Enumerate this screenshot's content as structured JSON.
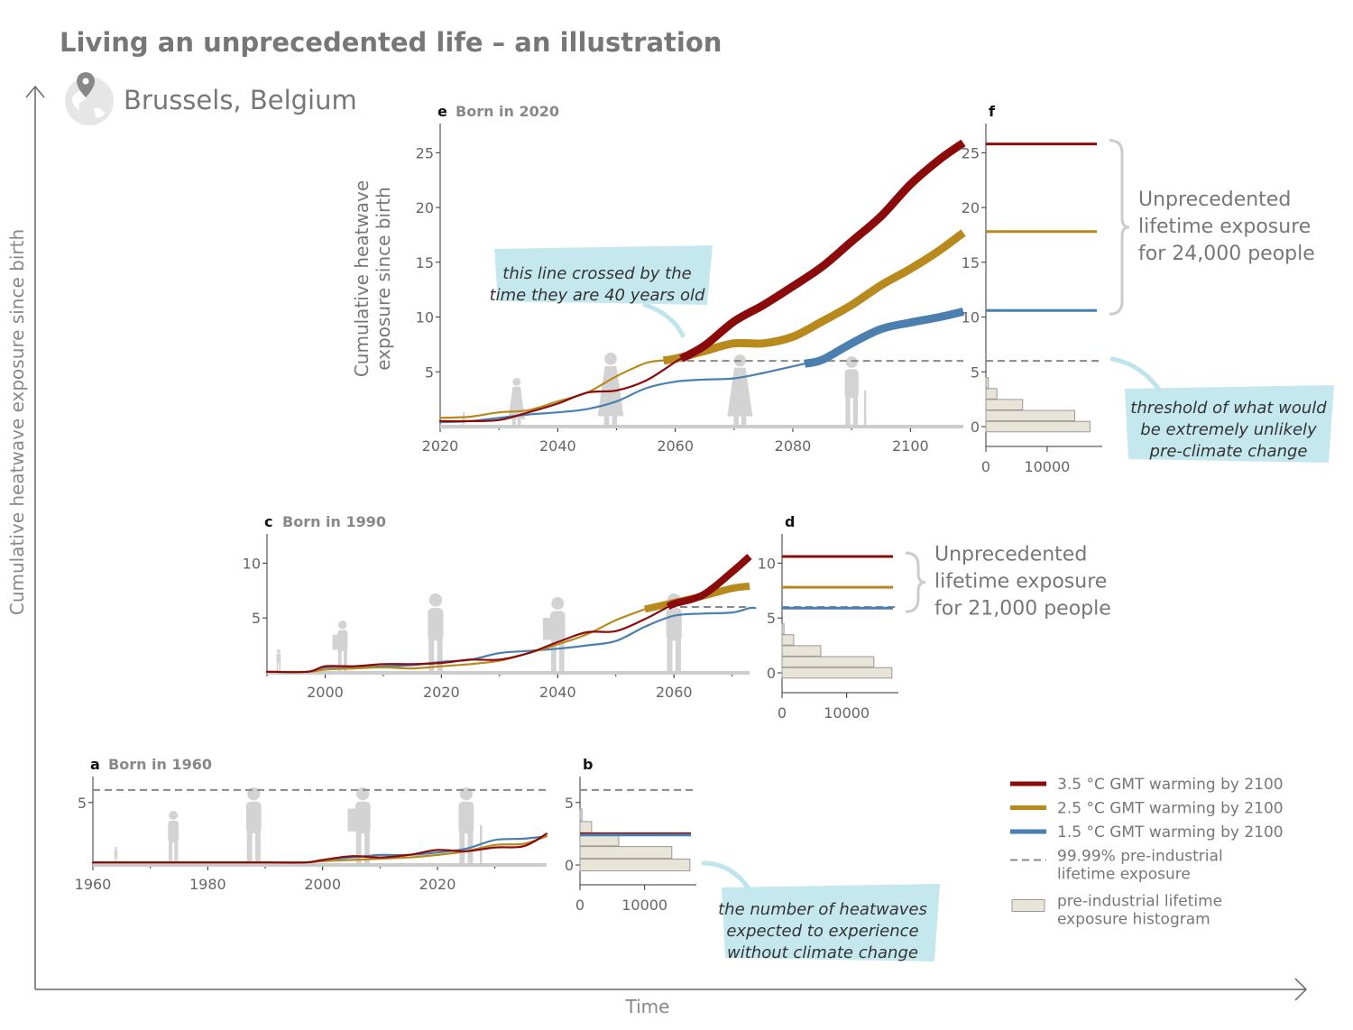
{
  "header": {
    "title": "Living an unprecedented life – an illustration",
    "location": "Brussels, Belgium"
  },
  "axes": {
    "y_label": "Cumulative heatwave exposure since birth",
    "x_label": "Time"
  },
  "colors": {
    "s35": "#8b0a0a",
    "s25": "#b8891c",
    "s15": "#4a7fb0",
    "threshold": "#888888",
    "hist_fill": "#e8e4d8",
    "hist_stroke": "#999999",
    "callout": "#bfe5ec",
    "silhouette": "#d3d3d3"
  },
  "chart_data": [
    {
      "id": "e",
      "type": "line",
      "panel_letter": "e",
      "title": "Born in 2020",
      "ylabel": "Cumulative heatwave\nexposure since birth",
      "xlim": [
        2020,
        2109
      ],
      "ylim": [
        0,
        27
      ],
      "xticks": [
        2020,
        2040,
        2060,
        2080,
        2100
      ],
      "yticks": [
        5,
        10,
        15,
        20,
        25
      ],
      "threshold": 6,
      "series": [
        {
          "name": "3.5 °C GMT warming by 2100",
          "key": "s35",
          "cross": 2061,
          "x": [
            2020,
            2025,
            2030,
            2035,
            2040,
            2045,
            2050,
            2055,
            2060,
            2065,
            2070,
            2075,
            2080,
            2085,
            2090,
            2095,
            2100,
            2105,
            2109
          ],
          "y": [
            0.5,
            0.5,
            0.6,
            1.3,
            2.1,
            3.1,
            3.3,
            4.2,
            5.9,
            7.4,
            9.6,
            11.1,
            12.8,
            14.6,
            16.9,
            19.2,
            22.1,
            24.4,
            25.9
          ]
        },
        {
          "name": "2.5 °C GMT warming by 2100",
          "key": "s25",
          "cross": 2058,
          "x": [
            2020,
            2025,
            2030,
            2035,
            2040,
            2045,
            2050,
            2055,
            2060,
            2065,
            2070,
            2075,
            2080,
            2085,
            2090,
            2095,
            2100,
            2105,
            2109
          ],
          "y": [
            0.8,
            0.9,
            1.3,
            1.5,
            2.3,
            3.1,
            4.6,
            5.8,
            6.2,
            6.9,
            7.6,
            7.6,
            8.2,
            9.6,
            11.1,
            12.9,
            14.4,
            16.1,
            17.7
          ]
        },
        {
          "name": "1.5 °C GMT warming by 2100",
          "key": "s15",
          "cross": 2082,
          "x": [
            2020,
            2025,
            2030,
            2035,
            2040,
            2045,
            2050,
            2055,
            2060,
            2065,
            2070,
            2075,
            2080,
            2085,
            2090,
            2095,
            2100,
            2105,
            2109
          ],
          "y": [
            0.4,
            0.5,
            0.8,
            1.1,
            1.3,
            1.6,
            2.3,
            3.5,
            4.1,
            4.3,
            4.4,
            4.9,
            5.5,
            6.1,
            7.6,
            8.9,
            9.5,
            10.0,
            10.5
          ]
        }
      ]
    },
    {
      "id": "f",
      "type": "bar",
      "panel_letter": "f",
      "title": "",
      "xlim": [
        0,
        19000
      ],
      "ylim": [
        0,
        27
      ],
      "xticks": [
        0,
        10000
      ],
      "yticks": [
        0,
        5,
        10,
        15,
        20,
        25
      ],
      "threshold": 6,
      "hist_bins": [
        [
          0,
          17000
        ],
        [
          1,
          14500
        ],
        [
          2,
          6000
        ],
        [
          3,
          1800
        ],
        [
          4,
          400
        ]
      ],
      "levels": [
        {
          "key": "s35",
          "value": 25.8
        },
        {
          "key": "s25",
          "value": 17.8
        },
        {
          "key": "s15",
          "value": 10.6
        }
      ],
      "annotation": "Unprecedented\nlifetime exposure\nfor 24,000 people"
    },
    {
      "id": "c",
      "type": "line",
      "panel_letter": "c",
      "title": "Born in 1990",
      "xlim": [
        1990,
        2073
      ],
      "ylim": [
        0,
        12
      ],
      "xticks": [
        2000,
        2020,
        2040,
        2060
      ],
      "yticks": [
        5,
        10
      ],
      "threshold": 6,
      "series": [
        {
          "name": "3.5 °C GMT warming by 2100",
          "key": "s35",
          "cross": 2059,
          "x": [
            1990,
            1997,
            2000,
            2005,
            2010,
            2015,
            2020,
            2025,
            2030,
            2035,
            2040,
            2045,
            2050,
            2055,
            2060,
            2065,
            2070,
            2073
          ],
          "y": [
            0.1,
            0.1,
            0.6,
            0.6,
            0.8,
            0.8,
            0.9,
            1.2,
            1.2,
            1.8,
            2.8,
            3.7,
            3.8,
            4.9,
            6.3,
            7.1,
            9.2,
            10.6
          ]
        },
        {
          "name": "2.5 °C GMT warming by 2100",
          "key": "s25",
          "cross": 2055,
          "x": [
            1990,
            1997,
            2000,
            2005,
            2010,
            2015,
            2020,
            2025,
            2030,
            2035,
            2040,
            2045,
            2050,
            2055,
            2060,
            2065,
            2070,
            2073
          ],
          "y": [
            0.1,
            0.1,
            0.3,
            0.4,
            0.5,
            0.4,
            0.6,
            0.8,
            1.1,
            1.8,
            2.6,
            3.5,
            4.8,
            5.8,
            6.4,
            7.0,
            7.7,
            7.9
          ]
        },
        {
          "name": "1.5 °C GMT warming by 2100",
          "key": "s15",
          "cross": 2074,
          "x": [
            1990,
            1997,
            2000,
            2005,
            2010,
            2015,
            2020,
            2025,
            2030,
            2035,
            2040,
            2045,
            2050,
            2055,
            2060,
            2065,
            2070,
            2073
          ],
          "y": [
            0.1,
            0.1,
            0.5,
            0.5,
            0.6,
            0.7,
            1.0,
            1.2,
            1.8,
            2.0,
            2.2,
            2.5,
            2.9,
            4.2,
            5.2,
            5.4,
            5.5,
            5.9
          ]
        }
      ]
    },
    {
      "id": "d",
      "type": "bar",
      "panel_letter": "d",
      "title": "",
      "xlim": [
        0,
        18000
      ],
      "ylim": [
        0,
        12
      ],
      "xticks": [
        0,
        10000
      ],
      "yticks": [
        0,
        5,
        10
      ],
      "threshold": 6,
      "hist_bins": [
        [
          0,
          17000
        ],
        [
          1,
          14200
        ],
        [
          2,
          6000
        ],
        [
          3,
          1800
        ],
        [
          4,
          300
        ]
      ],
      "levels": [
        {
          "key": "s35",
          "value": 10.6
        },
        {
          "key": "s25",
          "value": 7.8
        },
        {
          "key": "s15",
          "value": 5.9
        }
      ],
      "annotation": "Unprecedented\nlifetime exposure\nfor 21,000 people"
    },
    {
      "id": "a",
      "type": "line",
      "panel_letter": "a",
      "title": "Born in 1960",
      "xlim": [
        1960,
        2039
      ],
      "ylim": [
        0,
        6.5
      ],
      "xticks": [
        1960,
        1980,
        2000,
        2020
      ],
      "yticks": [
        5
      ],
      "threshold": 6,
      "series": [
        {
          "name": "3.5 °C GMT warming by 2100",
          "key": "s35",
          "cross": null,
          "x": [
            1960,
            1975,
            1990,
            1997,
            2000,
            2005,
            2010,
            2015,
            2020,
            2025,
            2030,
            2035,
            2039
          ],
          "y": [
            0.2,
            0.2,
            0.2,
            0.2,
            0.4,
            0.7,
            0.6,
            0.8,
            1.2,
            1.1,
            1.4,
            1.5,
            2.5
          ]
        },
        {
          "name": "2.5 °C GMT warming by 2100",
          "key": "s25",
          "cross": null,
          "x": [
            1960,
            1975,
            1990,
            1997,
            2000,
            2005,
            2010,
            2015,
            2020,
            2025,
            2030,
            2035,
            2039
          ],
          "y": [
            0.2,
            0.2,
            0.2,
            0.2,
            0.3,
            0.4,
            0.5,
            0.6,
            0.8,
            1.1,
            1.6,
            1.7,
            2.3
          ]
        },
        {
          "name": "1.5 °C GMT warming by 2100",
          "key": "s15",
          "cross": null,
          "x": [
            1960,
            1975,
            1990,
            1997,
            2000,
            2005,
            2010,
            2015,
            2020,
            2025,
            2030,
            2035,
            2039
          ],
          "y": [
            0.2,
            0.2,
            0.2,
            0.2,
            0.4,
            0.6,
            0.8,
            0.8,
            1.0,
            1.3,
            2.0,
            2.1,
            2.3
          ]
        }
      ]
    },
    {
      "id": "b",
      "type": "bar",
      "panel_letter": "b",
      "title": "",
      "xlim": [
        0,
        18000
      ],
      "ylim": [
        0,
        6.5
      ],
      "xticks": [
        0,
        10000
      ],
      "yticks": [
        0,
        5
      ],
      "threshold": 6,
      "hist_bins": [
        [
          0,
          17000
        ],
        [
          1,
          14200
        ],
        [
          2,
          6000
        ],
        [
          3,
          1800
        ],
        [
          4,
          300
        ]
      ],
      "levels": [
        {
          "key": "s35",
          "value": 2.5
        },
        {
          "key": "s15",
          "value": 2.4
        }
      ],
      "annotation": ""
    }
  ],
  "callouts": [
    {
      "id": "callout-40",
      "text": "this line crossed by the\ntime they are 40 years old"
    },
    {
      "id": "callout-threshold",
      "text": "threshold of what would\nbe extremely unlikely\npre-climate change"
    },
    {
      "id": "callout-number",
      "text": "the number of heatwaves\nexpected to experience\nwithout climate change"
    }
  ],
  "legend": [
    {
      "key": "s35",
      "label": "3.5 °C GMT warming by 2100",
      "kind": "line"
    },
    {
      "key": "s25",
      "label": "2.5 °C GMT warming by 2100",
      "kind": "line"
    },
    {
      "key": "s15",
      "label": "1.5 °C GMT warming by 2100",
      "kind": "line"
    },
    {
      "key": "threshold",
      "label": "99.99% pre-industrial\nlifetime exposure",
      "kind": "dash"
    },
    {
      "key": "hist",
      "label": "pre-industrial lifetime\nexposure histogram",
      "kind": "box"
    }
  ]
}
